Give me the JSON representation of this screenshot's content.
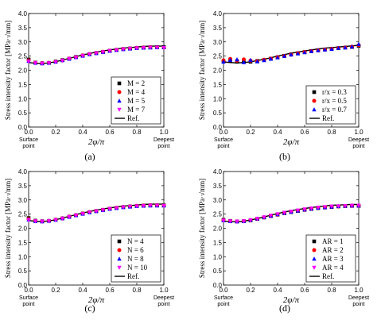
{
  "chart_data": [
    {
      "type": "scatter",
      "panel_label": "(a)",
      "ylabel": "Stress intensity factor [MPa·√mm]",
      "xlabel": "2φ/π",
      "x_start_label": "Surface point",
      "x_end_label": "Deepest point",
      "xlim": [
        0,
        1
      ],
      "ylim": [
        0,
        4
      ],
      "xticks": [
        "0.0",
        "0.2",
        "0.4",
        "0.6",
        "0.8",
        "1.0"
      ],
      "yticks": [
        "0.0",
        "0.5",
        "1.0",
        "1.5",
        "2.0",
        "2.5",
        "3.0",
        "3.5",
        "4.0"
      ],
      "legend_position": "bottom-right",
      "x": [
        0.0,
        0.05,
        0.1,
        0.15,
        0.2,
        0.25,
        0.3,
        0.35,
        0.4,
        0.45,
        0.5,
        0.55,
        0.6,
        0.65,
        0.7,
        0.75,
        0.8,
        0.85,
        0.9,
        0.95,
        1.0
      ],
      "series": [
        {
          "name": "M = 2",
          "values": [
            2.38,
            2.27,
            2.25,
            2.26,
            2.31,
            2.36,
            2.41,
            2.47,
            2.52,
            2.57,
            2.61,
            2.65,
            2.69,
            2.72,
            2.75,
            2.77,
            2.79,
            2.8,
            2.81,
            2.82,
            2.82
          ]
        },
        {
          "name": "M = 4",
          "values": [
            2.35,
            2.27,
            2.25,
            2.26,
            2.3,
            2.35,
            2.41,
            2.46,
            2.52,
            2.57,
            2.61,
            2.65,
            2.69,
            2.72,
            2.75,
            2.77,
            2.79,
            2.8,
            2.81,
            2.81,
            2.8
          ]
        },
        {
          "name": "M = 5",
          "values": [
            2.33,
            2.26,
            2.24,
            2.26,
            2.3,
            2.35,
            2.4,
            2.46,
            2.51,
            2.56,
            2.6,
            2.64,
            2.68,
            2.71,
            2.74,
            2.76,
            2.78,
            2.79,
            2.8,
            2.81,
            2.81
          ]
        },
        {
          "name": "M = 7",
          "values": [
            2.3,
            2.25,
            2.24,
            2.25,
            2.29,
            2.34,
            2.4,
            2.45,
            2.51,
            2.56,
            2.6,
            2.64,
            2.68,
            2.71,
            2.74,
            2.76,
            2.78,
            2.79,
            2.8,
            2.8,
            2.79
          ]
        }
      ],
      "reference": {
        "name": "Ref.",
        "values": [
          2.27,
          2.25,
          2.24,
          2.26,
          2.3,
          2.36,
          2.42,
          2.48,
          2.54,
          2.59,
          2.64,
          2.68,
          2.72,
          2.75,
          2.78,
          2.8,
          2.82,
          2.84,
          2.85,
          2.85,
          2.85
        ]
      }
    },
    {
      "type": "scatter",
      "panel_label": "(b)",
      "ylabel": "Stress intensity factor [MPa·√mm]",
      "xlabel": "2φ/π",
      "x_start_label": "Surface point",
      "x_end_label": "Deepest point",
      "xlim": [
        0,
        1
      ],
      "ylim": [
        0,
        4
      ],
      "xticks": [
        "0.0",
        "0.2",
        "0.4",
        "0.6",
        "0.8",
        "1.0"
      ],
      "yticks": [
        "0.0",
        "0.5",
        "1.0",
        "1.5",
        "2.0",
        "2.5",
        "3.0",
        "3.5",
        "4.0"
      ],
      "legend_position": "bottom-right",
      "x": [
        0.0,
        0.05,
        0.1,
        0.15,
        0.2,
        0.25,
        0.3,
        0.35,
        0.4,
        0.45,
        0.5,
        0.55,
        0.6,
        0.65,
        0.7,
        0.75,
        0.8,
        0.85,
        0.9,
        0.95,
        1.0
      ],
      "series": [
        {
          "name": "r/x = 0.3",
          "values": [
            2.32,
            2.33,
            2.3,
            2.3,
            2.3,
            2.33,
            2.36,
            2.41,
            2.46,
            2.51,
            2.56,
            2.6,
            2.64,
            2.68,
            2.71,
            2.73,
            2.76,
            2.78,
            2.8,
            2.82,
            2.86
          ]
        },
        {
          "name": "r/x = 0.5",
          "values": [
            2.35,
            2.4,
            2.34,
            2.38,
            2.34,
            2.32,
            2.37,
            2.41,
            2.46,
            2.5,
            2.55,
            2.6,
            2.64,
            2.67,
            2.7,
            2.73,
            2.76,
            2.78,
            2.8,
            2.83,
            2.88
          ]
        },
        {
          "name": "r/x = 0.7",
          "values": [
            2.3,
            2.36,
            2.38,
            2.28,
            2.36,
            2.31,
            2.35,
            2.4,
            2.45,
            2.5,
            2.55,
            2.59,
            2.63,
            2.67,
            2.7,
            2.73,
            2.75,
            2.78,
            2.8,
            2.83,
            2.92
          ]
        }
      ],
      "reference": {
        "name": "Ref.",
        "values": [
          2.3,
          2.27,
          2.26,
          2.27,
          2.3,
          2.34,
          2.39,
          2.44,
          2.5,
          2.55,
          2.6,
          2.64,
          2.68,
          2.72,
          2.75,
          2.78,
          2.8,
          2.82,
          2.84,
          2.86,
          2.88
        ]
      }
    },
    {
      "type": "scatter",
      "panel_label": "(c)",
      "ylabel": "Stress intensity factor [MPa·√mm]",
      "xlabel": "2φ/π",
      "x_start_label": "Surface point",
      "x_end_label": "Deepest point",
      "xlim": [
        0,
        1
      ],
      "ylim": [
        0,
        4
      ],
      "xticks": [
        "0.0",
        "0.2",
        "0.4",
        "0.6",
        "0.8",
        "1.0"
      ],
      "yticks": [
        "0.0",
        "0.5",
        "1.0",
        "1.5",
        "2.0",
        "2.5",
        "3.0",
        "3.5",
        "4.0"
      ],
      "legend_position": "bottom-right",
      "x": [
        0.0,
        0.05,
        0.1,
        0.15,
        0.2,
        0.25,
        0.3,
        0.35,
        0.4,
        0.45,
        0.5,
        0.55,
        0.6,
        0.65,
        0.7,
        0.75,
        0.8,
        0.85,
        0.9,
        0.95,
        1.0
      ],
      "series": [
        {
          "name": "N = 4",
          "values": [
            2.36,
            2.27,
            2.25,
            2.26,
            2.3,
            2.35,
            2.41,
            2.46,
            2.52,
            2.57,
            2.61,
            2.65,
            2.69,
            2.72,
            2.75,
            2.77,
            2.79,
            2.8,
            2.81,
            2.81,
            2.81
          ]
        },
        {
          "name": "N = 6",
          "values": [
            2.33,
            2.26,
            2.24,
            2.26,
            2.3,
            2.35,
            2.41,
            2.46,
            2.52,
            2.57,
            2.61,
            2.65,
            2.69,
            2.72,
            2.75,
            2.77,
            2.79,
            2.8,
            2.81,
            2.81,
            2.8
          ]
        },
        {
          "name": "N = 8",
          "values": [
            2.31,
            2.25,
            2.24,
            2.26,
            2.3,
            2.35,
            2.4,
            2.46,
            2.51,
            2.56,
            2.6,
            2.64,
            2.68,
            2.71,
            2.74,
            2.76,
            2.78,
            2.79,
            2.8,
            2.8,
            2.8
          ]
        },
        {
          "name": "N = 10",
          "values": [
            2.29,
            2.25,
            2.24,
            2.25,
            2.29,
            2.34,
            2.4,
            2.45,
            2.51,
            2.56,
            2.6,
            2.64,
            2.68,
            2.71,
            2.74,
            2.76,
            2.78,
            2.79,
            2.8,
            2.8,
            2.79
          ]
        }
      ],
      "reference": {
        "name": "Ref.",
        "values": [
          2.27,
          2.25,
          2.24,
          2.26,
          2.3,
          2.36,
          2.42,
          2.48,
          2.54,
          2.59,
          2.64,
          2.68,
          2.72,
          2.75,
          2.78,
          2.8,
          2.82,
          2.84,
          2.85,
          2.85,
          2.85
        ]
      }
    },
    {
      "type": "scatter",
      "panel_label": "(d)",
      "ylabel": "Stress intensity factor [MPa·√mm]",
      "xlabel": "2φ/π",
      "x_start_label": "Surface point",
      "x_end_label": "Deepest point",
      "xlim": [
        0,
        1
      ],
      "ylim": [
        0,
        4
      ],
      "xticks": [
        "0.0",
        "0.2",
        "0.4",
        "0.6",
        "0.8",
        "1.0"
      ],
      "yticks": [
        "0.0",
        "0.5",
        "1.0",
        "1.5",
        "2.0",
        "2.5",
        "3.0",
        "3.5",
        "4.0"
      ],
      "legend_position": "bottom-right",
      "x": [
        0.0,
        0.05,
        0.1,
        0.15,
        0.2,
        0.25,
        0.3,
        0.35,
        0.4,
        0.45,
        0.5,
        0.55,
        0.6,
        0.65,
        0.7,
        0.75,
        0.8,
        0.85,
        0.9,
        0.95,
        1.0
      ],
      "series": [
        {
          "name": "AR = 1",
          "values": [
            2.3,
            2.26,
            2.24,
            2.25,
            2.28,
            2.33,
            2.38,
            2.43,
            2.48,
            2.53,
            2.57,
            2.61,
            2.65,
            2.68,
            2.71,
            2.73,
            2.75,
            2.77,
            2.78,
            2.79,
            2.79
          ]
        },
        {
          "name": "AR = 2",
          "values": [
            2.29,
            2.25,
            2.24,
            2.25,
            2.28,
            2.33,
            2.38,
            2.43,
            2.48,
            2.53,
            2.58,
            2.62,
            2.65,
            2.69,
            2.72,
            2.74,
            2.76,
            2.77,
            2.78,
            2.79,
            2.79
          ]
        },
        {
          "name": "AR = 3",
          "values": [
            2.28,
            2.25,
            2.24,
            2.25,
            2.29,
            2.34,
            2.39,
            2.44,
            2.49,
            2.54,
            2.58,
            2.62,
            2.66,
            2.69,
            2.72,
            2.74,
            2.76,
            2.78,
            2.79,
            2.8,
            2.8
          ]
        },
        {
          "name": "AR = 4",
          "values": [
            2.27,
            2.25,
            2.24,
            2.25,
            2.29,
            2.34,
            2.39,
            2.45,
            2.5,
            2.55,
            2.59,
            2.63,
            2.67,
            2.7,
            2.73,
            2.75,
            2.77,
            2.78,
            2.79,
            2.8,
            2.8
          ]
        }
      ],
      "reference": {
        "name": "Ref.",
        "values": [
          2.25,
          2.24,
          2.23,
          2.25,
          2.29,
          2.34,
          2.4,
          2.46,
          2.52,
          2.57,
          2.62,
          2.66,
          2.7,
          2.73,
          2.76,
          2.79,
          2.81,
          2.82,
          2.83,
          2.84,
          2.84
        ]
      }
    }
  ],
  "markers": [
    "square",
    "circle",
    "triangle-up",
    "triangle-down"
  ],
  "colors": {
    "series": [
      "#000000",
      "#ff0000",
      "#0000ff",
      "#ff00ff"
    ],
    "reference": "#000000",
    "axis": "#000000"
  }
}
